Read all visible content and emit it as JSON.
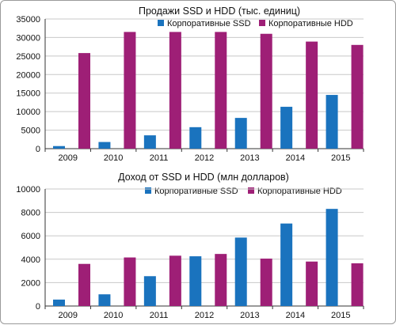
{
  "colors": {
    "ssd": "#1a73be",
    "hdd": "#9e1f76",
    "grid": "#c8c8c8",
    "axis": "#333333"
  },
  "chart_data": [
    {
      "type": "bar",
      "title": "Продажи SSD и HDD (тыс. единиц)",
      "categories": [
        "2009",
        "2010",
        "2011",
        "2012",
        "2013",
        "2014",
        "2015"
      ],
      "series": [
        {
          "name": "Корпоративные SSD",
          "values": [
            700,
            1800,
            3600,
            5800,
            8300,
            11300,
            14500
          ]
        },
        {
          "name": "Корпоративные HDD",
          "values": [
            25800,
            31500,
            31500,
            31500,
            31000,
            28900,
            28000
          ]
        }
      ],
      "ylim": [
        0,
        35000
      ],
      "yticks": [
        "0",
        "5000",
        "10000",
        "15000",
        "20000",
        "25000",
        "30000",
        "35000"
      ],
      "grid": true,
      "legend": "top-right"
    },
    {
      "type": "bar",
      "title": "Доход от SSD и HDD (млн долларов)",
      "categories": [
        "2009",
        "2010",
        "2011",
        "2012",
        "2013",
        "2014",
        "2015"
      ],
      "series": [
        {
          "name": "Корпоративные SSD",
          "values": [
            550,
            1000,
            2550,
            4250,
            5850,
            7050,
            8300
          ]
        },
        {
          "name": "Корпоративные HDD",
          "values": [
            3600,
            4150,
            4300,
            4450,
            4050,
            3800,
            3650
          ]
        }
      ],
      "ylim": [
        0,
        10000
      ],
      "yticks": [
        "0",
        "2000",
        "4000",
        "6000",
        "8000",
        "10000"
      ],
      "grid": true,
      "legend": "top-right"
    }
  ]
}
